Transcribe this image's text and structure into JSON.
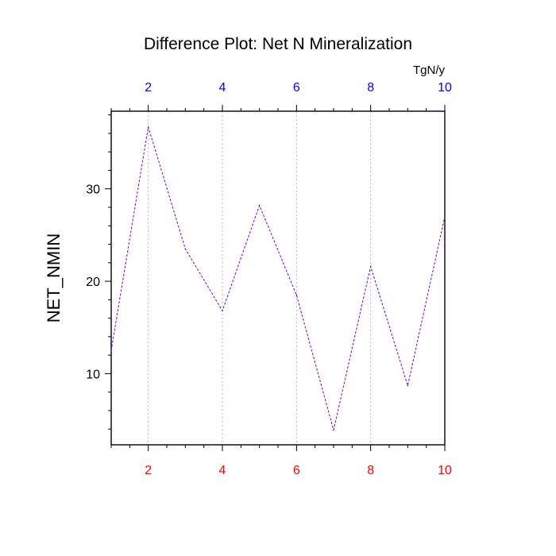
{
  "chart_data": {
    "type": "line",
    "title": "Difference Plot: Net N Mineralization",
    "units_label": "TgN/y",
    "ylabel": "NET_NMIN",
    "xlabel": "",
    "x": [
      1,
      2,
      3,
      4,
      5,
      6,
      7,
      8,
      9,
      10
    ],
    "series": [
      {
        "name": "NET_NMIN",
        "values": [
          12.5,
          36.7,
          23.5,
          16.8,
          28.2,
          18.5,
          3.9,
          21.6,
          8.7,
          27.0
        ]
      }
    ],
    "xlim": [
      1,
      10
    ],
    "ylim": [
      2.3,
      38.4
    ],
    "x_ticks_bottom": [
      2,
      4,
      6,
      8,
      10
    ],
    "x_ticks_top": [
      2,
      4,
      6,
      8,
      10
    ],
    "y_ticks": [
      10,
      20,
      30
    ],
    "grid": "vertical dashed at major x ticks",
    "colors": {
      "line": "#7a00c8",
      "bottom_tick_labels": "#ff0000",
      "top_tick_labels": "#0000ff",
      "grid": "#b4b4b4",
      "axes": "#000000"
    }
  }
}
